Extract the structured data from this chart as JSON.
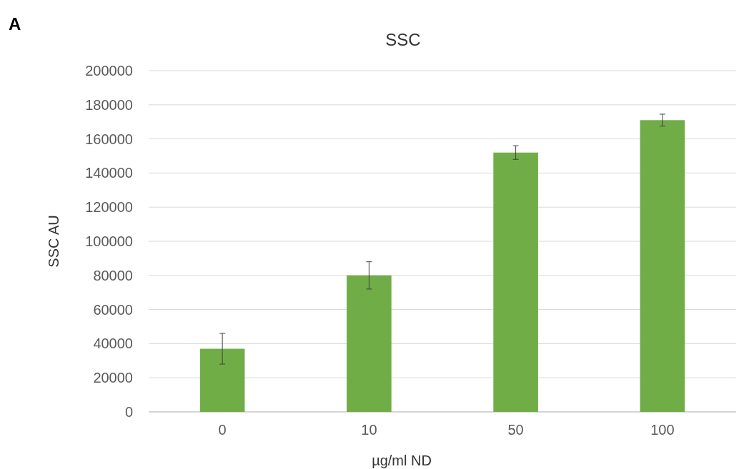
{
  "chart_data": {
    "type": "bar",
    "title": "SSC",
    "xlabel": "µg/ml ND",
    "ylabel": "SSC AU",
    "annotations": [
      "A"
    ],
    "categories": [
      "0",
      "10",
      "50",
      "100"
    ],
    "values": [
      37000,
      80000,
      152000,
      171000
    ],
    "errors": [
      9000,
      8000,
      4000,
      3500
    ],
    "color": "#70ad47",
    "ylim": [
      0,
      200000
    ],
    "yticks": [
      0,
      20000,
      40000,
      60000,
      80000,
      100000,
      120000,
      140000,
      160000,
      180000,
      200000
    ],
    "grid": "y"
  }
}
